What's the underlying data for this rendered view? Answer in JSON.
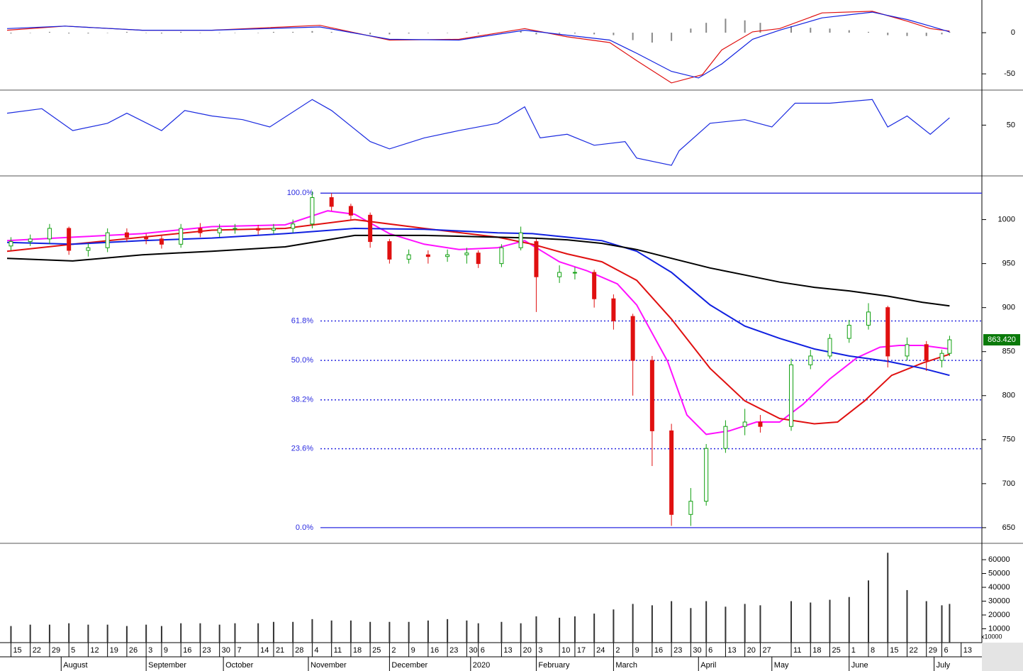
{
  "chart_data": [
    {
      "type": "line",
      "ylim": [
        -68,
        38
      ],
      "yticks": [
        0,
        -50
      ],
      "series": [
        {
          "color": "#e01010",
          "x": [
            0,
            15,
            35,
            53,
            81,
            99,
            117,
            134,
            145,
            156,
            163,
            172,
            180,
            185,
            193,
            200,
            211,
            224,
            233,
            239,
            244
          ],
          "values": [
            3,
            8,
            3,
            3,
            9,
            -9,
            -8,
            5,
            -5,
            -12,
            -34,
            -61,
            -51,
            -21,
            1,
            5,
            24,
            26,
            14,
            5,
            2
          ]
        },
        {
          "color": "#1020e0",
          "x": [
            0,
            15,
            35,
            53,
            81,
            99,
            117,
            134,
            145,
            156,
            163,
            172,
            179,
            185,
            193,
            200,
            211,
            224,
            233,
            239,
            244
          ],
          "values": [
            5,
            8,
            3,
            3,
            7,
            -8,
            -9,
            3,
            -3,
            -9,
            -25,
            -47,
            -55,
            -38,
            -8,
            3,
            18,
            25,
            16,
            8,
            1
          ]
        }
      ],
      "histogram": {
        "color": "#888888",
        "x": [
          1,
          6,
          11,
          16,
          21,
          26,
          31,
          36,
          40,
          45,
          50,
          55,
          59,
          65,
          69,
          74,
          79,
          84,
          89,
          94,
          99,
          104,
          109,
          114,
          119,
          122,
          128,
          133,
          137,
          143,
          147,
          152,
          157,
          162,
          167,
          172,
          177,
          181,
          186,
          191,
          195,
          203,
          208,
          213,
          218,
          223,
          228,
          233,
          238,
          242,
          244
        ],
        "values": [
          -1,
          0,
          1,
          -1,
          -1,
          0,
          1,
          0,
          -1,
          1,
          0,
          0,
          0,
          0,
          1,
          1,
          2,
          1,
          0,
          -2,
          -2,
          -1,
          0,
          0,
          1,
          -1,
          1,
          2,
          -2,
          -1,
          -1,
          -2,
          -3,
          -9,
          -12,
          -10,
          5,
          12,
          17,
          15,
          12,
          8,
          6,
          5,
          3,
          1,
          -3,
          -4,
          -4,
          -2,
          1
        ]
      }
    },
    {
      "type": "line",
      "ylim": [
        23,
        68
      ],
      "yticks": [
        50
      ],
      "series": [
        {
          "color": "#1a2ae0",
          "x": [
            0,
            9,
            17,
            26,
            31,
            40,
            46,
            53,
            61,
            68,
            79,
            84,
            94,
            99,
            108,
            117,
            127,
            134,
            138,
            145,
            152,
            160,
            163,
            172,
            174,
            182,
            191,
            198,
            204,
            213,
            224,
            228,
            233,
            239,
            244
          ],
          "values": [
            56.5,
            59,
            47,
            51,
            56.5,
            47,
            58,
            55,
            53,
            49,
            64,
            58,
            41,
            37,
            43,
            47,
            51,
            60,
            43,
            45,
            39,
            41,
            32,
            28,
            36,
            51,
            53,
            49,
            62,
            62,
            64,
            49,
            55,
            45,
            54
          ]
        }
      ]
    },
    {
      "type": "candlestick",
      "ylim": [
        633,
        1048
      ],
      "yticks": [
        650,
        700,
        750,
        800,
        850,
        900,
        950,
        1000
      ],
      "candles": {
        "x": [
          1,
          6,
          11,
          16,
          21,
          26,
          31,
          36,
          40,
          45,
          50,
          55,
          59,
          65,
          69,
          74,
          79,
          84,
          89,
          94,
          99,
          104,
          109,
          114,
          119,
          122,
          128,
          133,
          137,
          143,
          147,
          152,
          157,
          162,
          167,
          172,
          177,
          181,
          186,
          191,
          195,
          203,
          208,
          213,
          218,
          223,
          228,
          233,
          238,
          242,
          244
        ],
        "open": [
          970,
          975,
          978,
          990,
          965,
          968,
          985,
          980,
          978,
          972,
          990,
          985,
          990,
          990,
          988,
          990,
          995,
          1025,
          1015,
          1005,
          975,
          955,
          960,
          958,
          960,
          962,
          950,
          968,
          975,
          935,
          940,
          940,
          910,
          890,
          840,
          760,
          665,
          680,
          740,
          765,
          770,
          765,
          835,
          845,
          865,
          880,
          900,
          845,
          858,
          840,
          848
        ],
        "high": [
          980,
          983,
          995,
          992,
          973,
          990,
          990,
          984,
          982,
          995,
          996,
          995,
          995,
          994,
          995,
          1000,
          1032,
          1030,
          1018,
          1008,
          978,
          966,
          965,
          966,
          968,
          965,
          972,
          992,
          978,
          948,
          946,
          943,
          915,
          893,
          845,
          768,
          695,
          745,
          772,
          785,
          778,
          842,
          852,
          870,
          886,
          905,
          902,
          866,
          862,
          852,
          868
        ],
        "low": [
          965,
          970,
          972,
          960,
          958,
          963,
          975,
          972,
          967,
          968,
          980,
          980,
          984,
          983,
          984,
          985,
          990,
          1010,
          1000,
          968,
          950,
          950,
          950,
          952,
          950,
          945,
          946,
          965,
          895,
          928,
          932,
          900,
          875,
          800,
          720,
          652,
          652,
          675,
          735,
          755,
          758,
          760,
          830,
          842,
          860,
          875,
          832,
          840,
          828,
          832,
          845
        ],
        "close": [
          975,
          978,
          990,
          965,
          968,
          985,
          980,
          978,
          972,
          990,
          985,
          990,
          990,
          988,
          990,
          995,
          1025,
          1015,
          1005,
          975,
          955,
          960,
          958,
          960,
          962,
          950,
          968,
          985,
          935,
          940,
          940,
          910,
          885,
          840,
          760,
          665,
          680,
          740,
          765,
          770,
          765,
          835,
          845,
          865,
          880,
          895,
          845,
          858,
          840,
          848,
          863.42
        ],
        "up_color": "#10a010",
        "down_color": "#e01010"
      },
      "series": [
        {
          "color": "#ff10ff",
          "x": [
            0,
            17,
            35,
            53,
            72,
            83,
            90,
            99,
            108,
            117,
            127,
            134,
            143,
            150,
            158,
            163,
            171,
            176,
            181,
            187,
            194,
            200,
            206,
            213,
            220,
            226,
            231,
            237,
            244
          ],
          "values": [
            976,
            980,
            984,
            992,
            994,
            1010,
            1006,
            984,
            972,
            966,
            968,
            976,
            952,
            942,
            927,
            903,
            839,
            778,
            756,
            760,
            770,
            770,
            790,
            819,
            843,
            855,
            857,
            857,
            853
          ]
        },
        {
          "color": "#e01010",
          "x": [
            0,
            17,
            35,
            53,
            72,
            90,
            108,
            127,
            136,
            145,
            154,
            163,
            172,
            182,
            191,
            200,
            209,
            215,
            222,
            229,
            237,
            244
          ],
          "values": [
            964,
            972,
            980,
            988,
            990,
            1000,
            990,
            980,
            972,
            961,
            952,
            931,
            887,
            831,
            794,
            774,
            768,
            770,
            794,
            823,
            837,
            847
          ]
        },
        {
          "color": "#1020e0",
          "x": [
            0,
            17,
            35,
            53,
            72,
            90,
            108,
            127,
            136,
            145,
            154,
            163,
            172,
            182,
            191,
            200,
            209,
            218,
            228,
            237,
            244
          ],
          "values": [
            974,
            972,
            976,
            979,
            984,
            990,
            989,
            985,
            984,
            980,
            976,
            964,
            940,
            903,
            879,
            865,
            853,
            845,
            839,
            831,
            823
          ]
        },
        {
          "color": "#000000",
          "x": [
            0,
            17,
            35,
            53,
            72,
            90,
            108,
            127,
            136,
            145,
            154,
            163,
            172,
            182,
            191,
            200,
            209,
            218,
            228,
            237,
            244
          ],
          "values": [
            956,
            953,
            960,
            964,
            969,
            982,
            982,
            980,
            979,
            977,
            973,
            966,
            956,
            945,
            937,
            929,
            923,
            919,
            913,
            906,
            902
          ]
        }
      ],
      "fib_levels": [
        {
          "value": 1030,
          "label": "100.0%"
        },
        {
          "value": 884.8,
          "label": "61.8%"
        },
        {
          "value": 840,
          "label": "50.0%"
        },
        {
          "value": 795.2,
          "label": "38.2%"
        },
        {
          "value": 739.7,
          "label": "23.6%"
        },
        {
          "value": 650,
          "label": "0.0%"
        }
      ],
      "fib_color": "#2a2ae0",
      "last_price": {
        "value": 863.42,
        "label": "863.420"
      }
    },
    {
      "type": "bar",
      "ylim": [
        0,
        70800
      ],
      "yticks": [
        10000,
        20000,
        30000,
        40000,
        50000,
        60000
      ],
      "multiplier_label": "x10000",
      "color": "#333333",
      "x": [
        1,
        6,
        11,
        16,
        21,
        26,
        31,
        36,
        40,
        45,
        50,
        55,
        59,
        65,
        69,
        74,
        79,
        84,
        89,
        94,
        99,
        104,
        109,
        114,
        119,
        122,
        128,
        133,
        137,
        143,
        147,
        152,
        157,
        162,
        167,
        172,
        177,
        181,
        186,
        191,
        195,
        203,
        208,
        213,
        218,
        223,
        228,
        233,
        238,
        242,
        244
      ],
      "values": [
        12000,
        13000,
        13000,
        14000,
        13000,
        13000,
        12000,
        13000,
        12000,
        14000,
        14000,
        13000,
        14000,
        14000,
        15000,
        15000,
        17000,
        16000,
        16000,
        15000,
        15000,
        15000,
        16000,
        17000,
        16000,
        14000,
        15000,
        14000,
        19000,
        18000,
        19000,
        21000,
        24000,
        28000,
        27000,
        30000,
        25000,
        30000,
        26000,
        28000,
        27000,
        30000,
        29000,
        31000,
        33000,
        45000,
        65000,
        38000,
        30000,
        27000,
        28000
      ],
      "xlim": [
        0,
        252
      ],
      "xticks": [
        {
          "value": 1,
          "label": "15"
        },
        {
          "value": 6,
          "label": "22"
        },
        {
          "value": 11,
          "label": "29"
        },
        {
          "value": 16,
          "label": "5"
        },
        {
          "value": 21,
          "label": "12"
        },
        {
          "value": 26,
          "label": "19"
        },
        {
          "value": 31,
          "label": "26"
        },
        {
          "value": 36,
          "label": "3"
        },
        {
          "value": 40,
          "label": "9"
        },
        {
          "value": 45,
          "label": "16"
        },
        {
          "value": 50,
          "label": "23"
        },
        {
          "value": 55,
          "label": "30"
        },
        {
          "value": 59,
          "label": "7"
        },
        {
          "value": 65,
          "label": "14"
        },
        {
          "value": 69,
          "label": "21"
        },
        {
          "value": 74,
          "label": "28"
        },
        {
          "value": 79,
          "label": "4"
        },
        {
          "value": 84,
          "label": "11"
        },
        {
          "value": 89,
          "label": "18"
        },
        {
          "value": 94,
          "label": "25"
        },
        {
          "value": 99,
          "label": "2"
        },
        {
          "value": 104,
          "label": "9"
        },
        {
          "value": 109,
          "label": "16"
        },
        {
          "value": 114,
          "label": "23"
        },
        {
          "value": 119,
          "label": "30"
        },
        {
          "value": 122,
          "label": "6"
        },
        {
          "value": 128,
          "label": "13"
        },
        {
          "value": 133,
          "label": "20"
        },
        {
          "value": 137,
          "label": "3"
        },
        {
          "value": 143,
          "label": "10"
        },
        {
          "value": 147,
          "label": "17"
        },
        {
          "value": 152,
          "label": "24"
        },
        {
          "value": 157,
          "label": "2"
        },
        {
          "value": 162,
          "label": "9"
        },
        {
          "value": 167,
          "label": "16"
        },
        {
          "value": 172,
          "label": "23"
        },
        {
          "value": 177,
          "label": "30"
        },
        {
          "value": 181,
          "label": "6"
        },
        {
          "value": 186,
          "label": "13"
        },
        {
          "value": 191,
          "label": "20"
        },
        {
          "value": 195,
          "label": "27"
        },
        {
          "value": 203,
          "label": "11"
        },
        {
          "value": 208,
          "label": "18"
        },
        {
          "value": 213,
          "label": "25"
        },
        {
          "value": 218,
          "label": "1"
        },
        {
          "value": 223,
          "label": "8"
        },
        {
          "value": 228,
          "label": "15"
        },
        {
          "value": 233,
          "label": "22"
        },
        {
          "value": 238,
          "label": "29"
        },
        {
          "value": 242,
          "label": "6"
        },
        {
          "value": 247,
          "label": "13"
        }
      ],
      "month_ticks": [
        {
          "value": 14,
          "label": "August"
        },
        {
          "value": 36,
          "label": "September"
        },
        {
          "value": 56,
          "label": "October"
        },
        {
          "value": 78,
          "label": "November"
        },
        {
          "value": 99,
          "label": "December"
        },
        {
          "value": 120,
          "label": "2020"
        },
        {
          "value": 137,
          "label": "February"
        },
        {
          "value": 157,
          "label": "March"
        },
        {
          "value": 179,
          "label": "April"
        },
        {
          "value": 198,
          "label": "May"
        },
        {
          "value": 218,
          "label": "June"
        },
        {
          "value": 240,
          "label": "July"
        }
      ]
    }
  ]
}
